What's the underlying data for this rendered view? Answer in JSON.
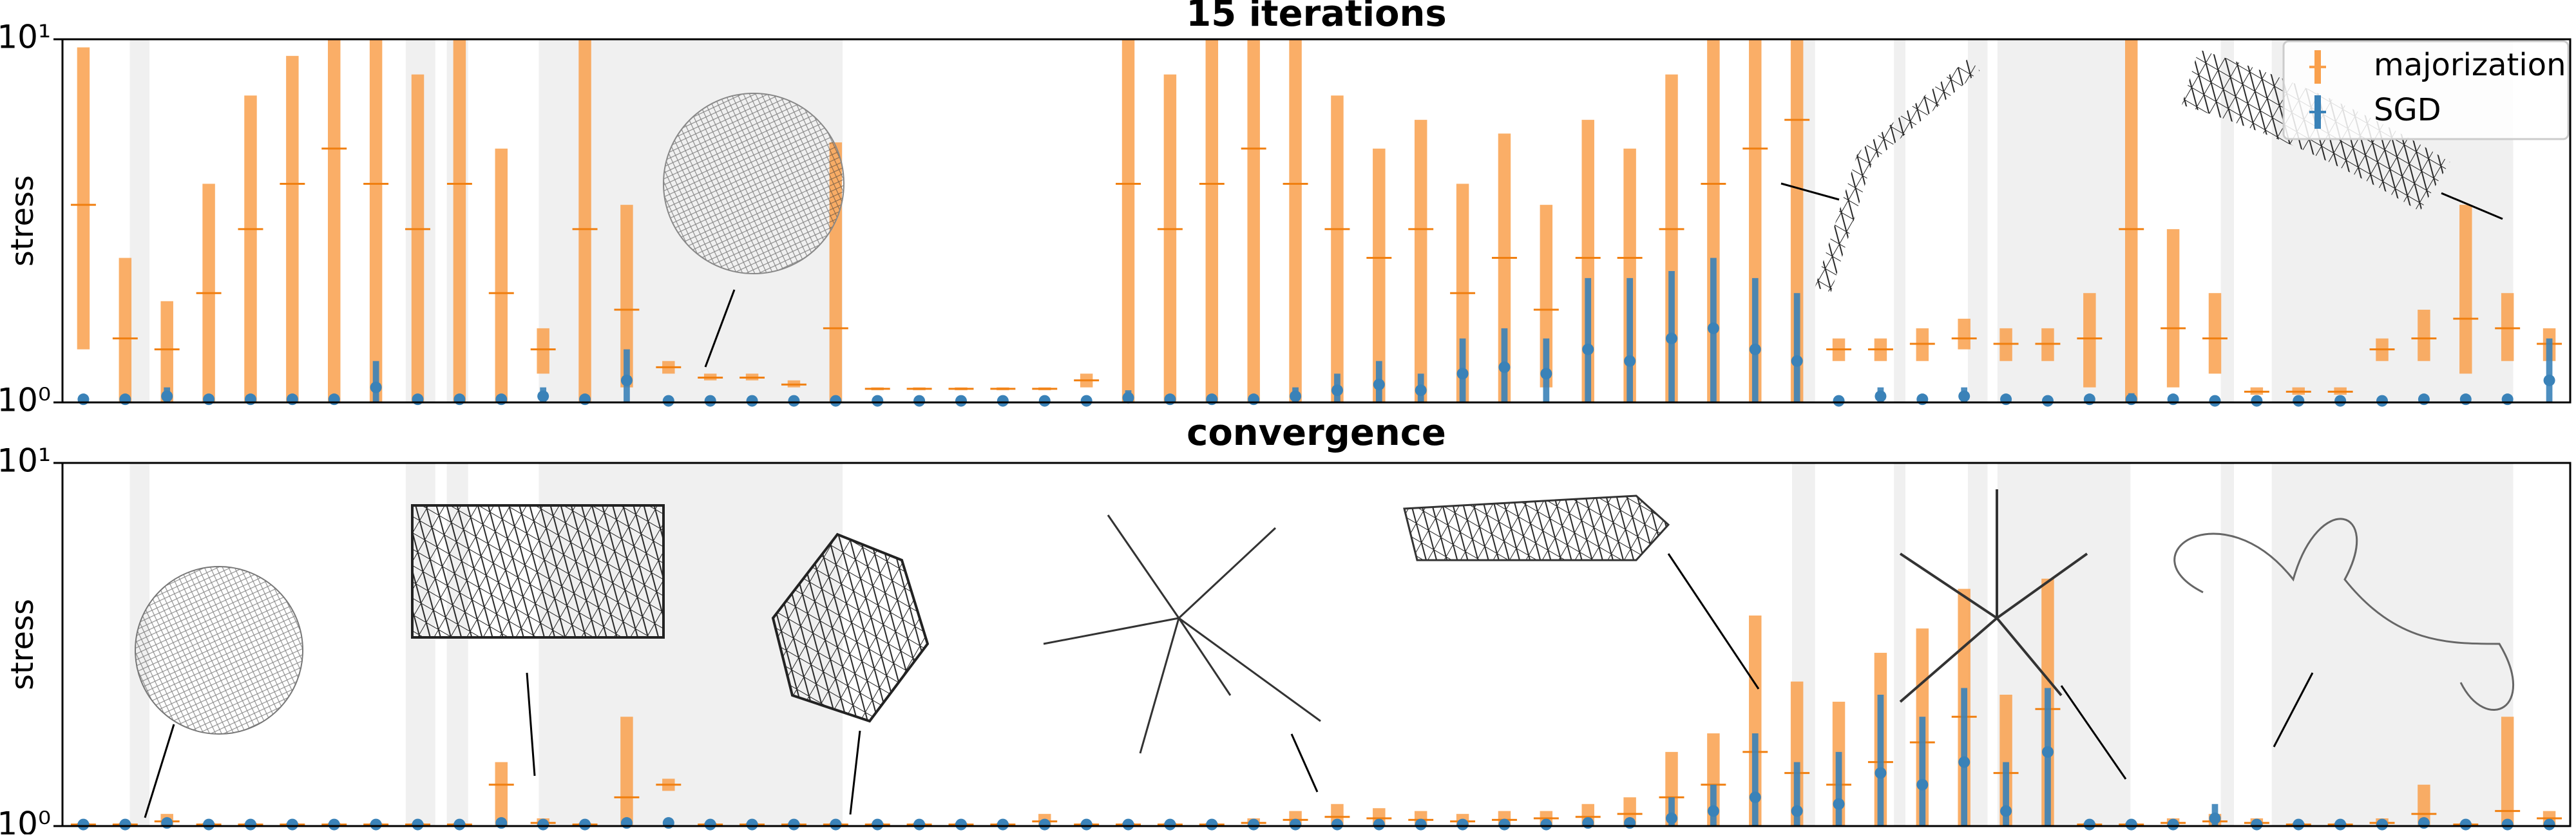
{
  "chart_data": [
    {
      "type": "errorbar",
      "title": "15 iterations",
      "ylabel": "stress",
      "yscale": "log",
      "ylim": [
        1,
        10
      ],
      "yticks": [
        {
          "value": 1,
          "label": "10⁰"
        },
        {
          "value": 10,
          "label": "10¹"
        }
      ],
      "legend": "upper right",
      "series": [
        {
          "name": "majorization",
          "color": "#f9a04c",
          "values": [
            3.5,
            1.5,
            1.4,
            2,
            3,
            4,
            5,
            4,
            3,
            4,
            2,
            1.4,
            3,
            1.8,
            1.25,
            1.17,
            1.17,
            1.12,
            1.6,
            1.09,
            1.09,
            1.09,
            1.09,
            1.09,
            1.15,
            4,
            3,
            4,
            5,
            4,
            3,
            2.5,
            3,
            2,
            2.5,
            1.8,
            2.5,
            2.5,
            3,
            4,
            5,
            6,
            1.4,
            1.4,
            1.45,
            1.5,
            1.45,
            1.45,
            1.5,
            3,
            1.6,
            1.5,
            1.07,
            1.07,
            1.07,
            1.4,
            1.5,
            1.7,
            1.6,
            1.45
          ],
          "low": [
            1.4,
            1,
            1,
            1,
            1,
            1,
            1,
            1,
            1,
            1,
            1,
            1.2,
            1,
            1.1,
            1.2,
            1.15,
            1.15,
            1.1,
            1,
            1.08,
            1.08,
            1.08,
            1.08,
            1.08,
            1.1,
            1,
            1,
            1,
            1,
            1,
            1,
            1,
            1,
            1,
            1,
            1.1,
            1,
            1,
            1,
            1,
            1,
            1,
            1.3,
            1.3,
            1.3,
            1.4,
            1.3,
            1.3,
            1.1,
            1,
            1.1,
            1.2,
            1.05,
            1.05,
            1.05,
            1.3,
            1.3,
            1.2,
            1.3,
            1.3
          ],
          "high": [
            9.5,
            2.5,
            1.9,
            4,
            7,
            9,
            10,
            10,
            8,
            10,
            5,
            1.6,
            10,
            3.5,
            1.3,
            1.2,
            1.2,
            1.15,
            5.2,
            1.1,
            1.1,
            1.1,
            1.1,
            1.1,
            1.2,
            10,
            8,
            10,
            10,
            10,
            7,
            5,
            6,
            4,
            5.5,
            3.5,
            6,
            5,
            8,
            10,
            10,
            10,
            1.5,
            1.5,
            1.6,
            1.7,
            1.6,
            1.6,
            2,
            10,
            3,
            2,
            1.1,
            1.1,
            1.1,
            1.5,
            1.8,
            3.5,
            2,
            1.6
          ]
        },
        {
          "name": "SGD",
          "color": "#3a82b8",
          "values": [
            1.02,
            1.02,
            1.04,
            1.02,
            1.02,
            1.02,
            1.02,
            1.1,
            1.02,
            1.02,
            1.02,
            1.04,
            1.02,
            1.15,
            1.01,
            1.01,
            1.01,
            1.01,
            1.01,
            1.01,
            1.01,
            1.01,
            1.01,
            1.01,
            1.01,
            1.03,
            1.02,
            1.02,
            1.02,
            1.04,
            1.08,
            1.12,
            1.08,
            1.2,
            1.25,
            1.2,
            1.4,
            1.3,
            1.5,
            1.6,
            1.4,
            1.3,
            1.01,
            1.04,
            1.02,
            1.04,
            1.02,
            1.01,
            1.02,
            1.02,
            1.02,
            1.01,
            1.01,
            1.01,
            1.01,
            1.01,
            1.02,
            1.02,
            1.02,
            1.15
          ],
          "low": [
            1,
            1,
            1,
            1,
            1,
            1,
            1,
            1,
            1,
            1,
            1,
            1,
            1,
            1,
            1,
            1,
            1,
            1,
            1,
            1,
            1,
            1,
            1,
            1,
            1,
            1,
            1,
            1,
            1,
            1,
            1,
            1,
            1,
            1,
            1,
            1,
            1,
            1,
            1,
            1,
            1,
            1,
            1,
            1,
            1,
            1,
            1,
            1,
            1,
            1,
            1,
            1,
            1,
            1,
            1,
            1,
            1,
            1,
            1,
            1
          ],
          "high": [
            1.05,
            1.05,
            1.1,
            1.04,
            1.04,
            1.04,
            1.04,
            1.3,
            1.05,
            1.05,
            1.05,
            1.1,
            1.04,
            1.4,
            1.03,
            1.03,
            1.03,
            1.03,
            1.03,
            1.03,
            1.03,
            1.03,
            1.03,
            1.03,
            1.03,
            1.08,
            1.04,
            1.04,
            1.05,
            1.1,
            1.2,
            1.3,
            1.2,
            1.5,
            1.6,
            1.5,
            2.2,
            2.2,
            2.3,
            2.5,
            2.2,
            2,
            1.03,
            1.1,
            1.05,
            1.1,
            1.05,
            1.03,
            1.05,
            1.06,
            1.04,
            1.03,
            1.03,
            1.03,
            1.03,
            1.03,
            1.05,
            1.05,
            1.05,
            1.5
          ]
        }
      ]
    },
    {
      "type": "errorbar",
      "title": "convergence",
      "ylabel": "stress",
      "yscale": "log",
      "ylim": [
        1,
        10
      ],
      "yticks": [
        {
          "value": 1,
          "label": "10⁰"
        },
        {
          "value": 10,
          "label": "10¹"
        }
      ],
      "series": [
        {
          "color": "#f9a04c",
          "values": [
            1.01,
            1.01,
            1.03,
            1.01,
            1.01,
            1.01,
            1.01,
            1.01,
            1.01,
            1.01,
            1.3,
            1.02,
            1.01,
            1.2,
            1.3,
            1.01,
            1.01,
            1.01,
            1.01,
            1.01,
            1.01,
            1.01,
            1.01,
            1.03,
            1.01,
            1.01,
            1.01,
            1.01,
            1.02,
            1.04,
            1.06,
            1.05,
            1.04,
            1.03,
            1.04,
            1.05,
            1.06,
            1.08,
            1.2,
            1.3,
            1.6,
            1.4,
            1.3,
            1.5,
            1.7,
            2,
            1.4,
            2.1,
            1.01,
            1.01,
            1.02,
            1.03,
            1.02,
            1.01,
            1.01,
            1.02,
            1.08,
            1.01,
            1.1,
            1.05
          ],
          "low": [
            1,
            1,
            1,
            1,
            1,
            1,
            1,
            1,
            1,
            1,
            1,
            1,
            1,
            1,
            1.25,
            1,
            1,
            1,
            1,
            1,
            1,
            1,
            1,
            1,
            1,
            1,
            1,
            1,
            1,
            1,
            1,
            1,
            1,
            1,
            1,
            1,
            1,
            1,
            1,
            1,
            1,
            1,
            1,
            1,
            1,
            1,
            1,
            1,
            1,
            1,
            1,
            1,
            1,
            1,
            1,
            1,
            1,
            1,
            1,
            1
          ],
          "high": [
            1.02,
            1.02,
            1.08,
            1.02,
            1.02,
            1.02,
            1.02,
            1.02,
            1.02,
            1.02,
            1.5,
            1.05,
            1.02,
            2,
            1.35,
            1.02,
            1.02,
            1.02,
            1.02,
            1.02,
            1.02,
            1.02,
            1.02,
            1.08,
            1.02,
            1.02,
            1.02,
            1.02,
            1.05,
            1.1,
            1.15,
            1.12,
            1.1,
            1.08,
            1.1,
            1.1,
            1.15,
            1.2,
            1.6,
            1.8,
            3.8,
            2.5,
            2.2,
            3,
            3.5,
            4.5,
            2.3,
            4.8,
            1.02,
            1.02,
            1.05,
            1.08,
            1.05,
            1.02,
            1.02,
            1.05,
            1.3,
            1.02,
            2,
            1.1
          ]
        },
        {
          "color": "#3a82b8",
          "values": [
            1.01,
            1.01,
            1.02,
            1.01,
            1.01,
            1.01,
            1.01,
            1.01,
            1.01,
            1.01,
            1.02,
            1.01,
            1.01,
            1.02,
            1.02,
            1.01,
            1.01,
            1.01,
            1.01,
            1.01,
            1.01,
            1.01,
            1.01,
            1.01,
            1.01,
            1.01,
            1.01,
            1.01,
            1.01,
            1.01,
            1.01,
            1.01,
            1.01,
            1.01,
            1.01,
            1.01,
            1.02,
            1.02,
            1.05,
            1.1,
            1.2,
            1.1,
            1.15,
            1.4,
            1.3,
            1.5,
            1.1,
            1.6,
            1.01,
            1.01,
            1.01,
            1.05,
            1.01,
            1.01,
            1.01,
            1.01,
            1.02,
            1.01,
            1.01,
            1.01
          ],
          "low": [
            1,
            1,
            1,
            1,
            1,
            1,
            1,
            1,
            1,
            1,
            1,
            1,
            1,
            1,
            1,
            1,
            1,
            1,
            1,
            1,
            1,
            1,
            1,
            1,
            1,
            1,
            1,
            1,
            1,
            1,
            1,
            1,
            1,
            1,
            1,
            1,
            1,
            1,
            1,
            1,
            1,
            1,
            1,
            1,
            1,
            1,
            1,
            1,
            1,
            1,
            1,
            1,
            1,
            1,
            1,
            1,
            1,
            1,
            1,
            1
          ],
          "high": [
            1.02,
            1.02,
            1.04,
            1.02,
            1.02,
            1.02,
            1.02,
            1.02,
            1.02,
            1.02,
            1.04,
            1.02,
            1.02,
            1.05,
            1.04,
            1.02,
            1.02,
            1.02,
            1.02,
            1.02,
            1.02,
            1.02,
            1.02,
            1.02,
            1.02,
            1.02,
            1.02,
            1.02,
            1.02,
            1.02,
            1.02,
            1.02,
            1.02,
            1.02,
            1.02,
            1.03,
            1.04,
            1.05,
            1.2,
            1.3,
            1.8,
            1.5,
            1.6,
            2.3,
            2,
            2.4,
            1.5,
            2.4,
            1.02,
            1.02,
            1.02,
            1.15,
            1.03,
            1.02,
            1.02,
            1.02,
            1.05,
            1.02,
            1.03,
            1.02
          ]
        }
      ]
    }
  ]
}
